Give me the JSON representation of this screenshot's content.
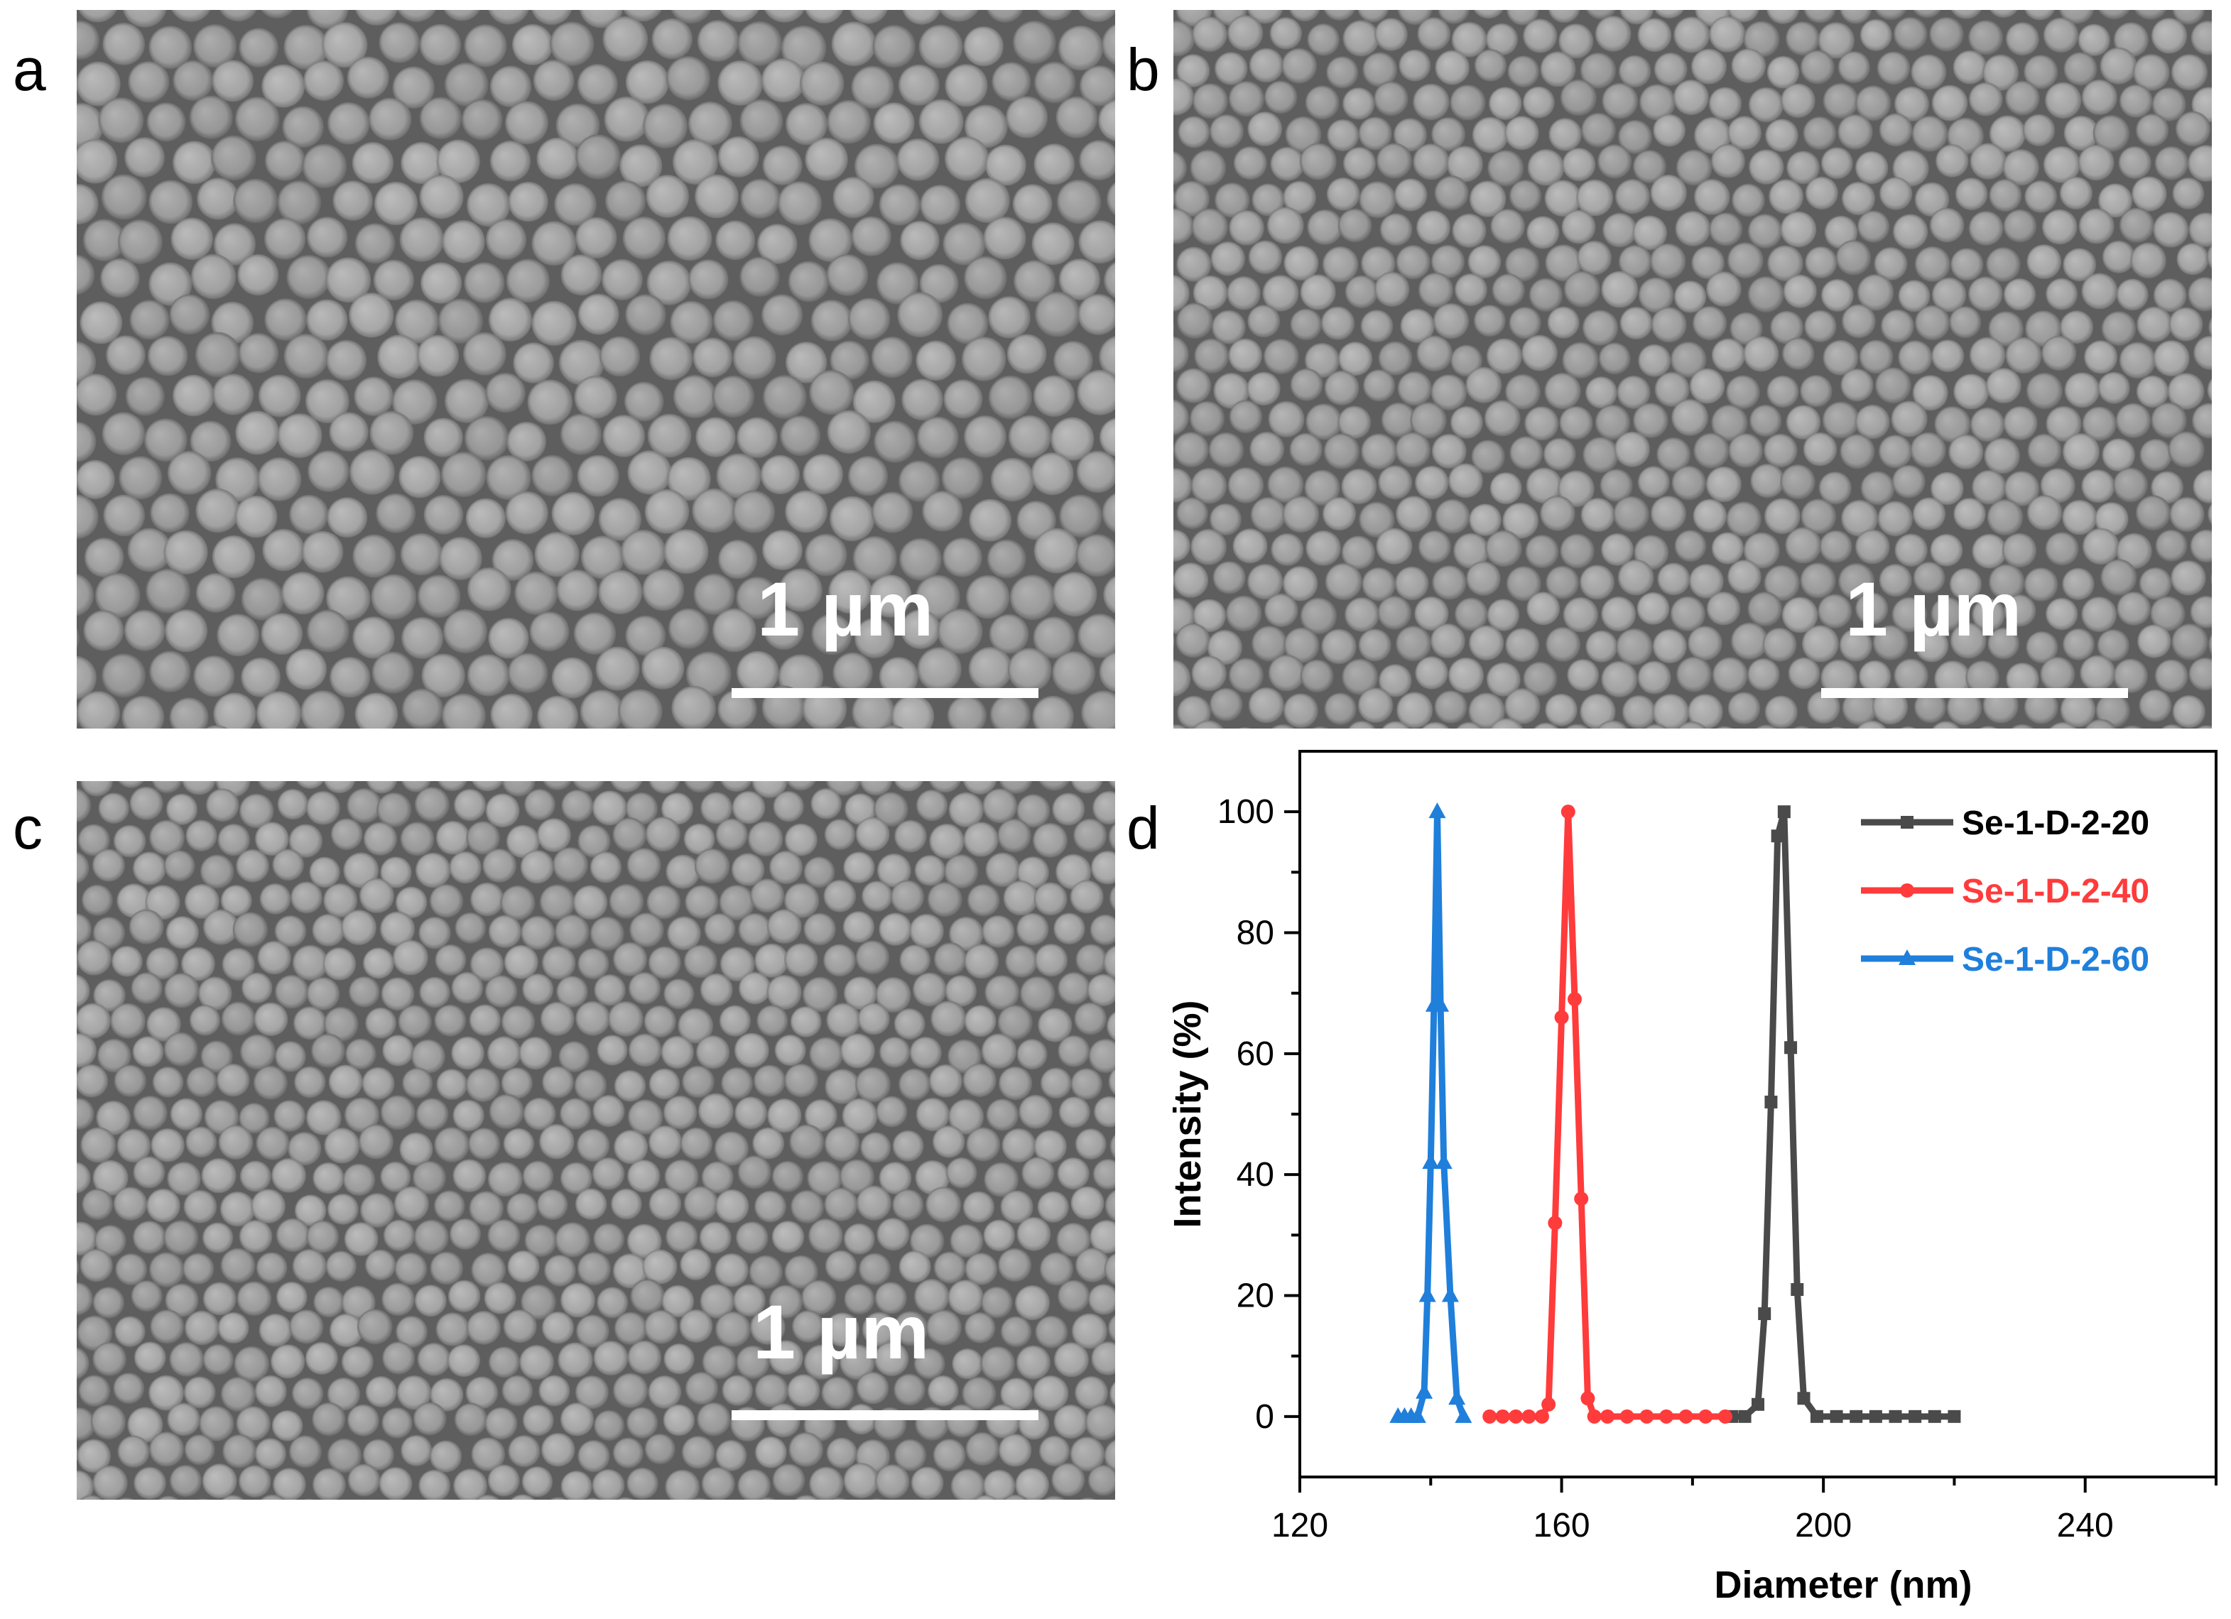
{
  "panels": [
    {
      "letter": "a",
      "scale_label": "1 µm"
    },
    {
      "letter": "b",
      "scale_label": "1 µm"
    },
    {
      "letter": "c",
      "scale_label": "1 µm"
    },
    {
      "letter": "d"
    }
  ],
  "chart_data": {
    "type": "line",
    "xlabel": "Diameter (nm)",
    "ylabel": "Intensity (%)",
    "xlim": [
      120,
      260
    ],
    "ylim": [
      -10,
      110
    ],
    "xticks": [
      120,
      160,
      200,
      240
    ],
    "yticks": [
      0,
      20,
      40,
      60,
      80,
      100
    ],
    "legend_position": "top-right",
    "grid": false,
    "series": [
      {
        "name": "Se-1-D-2-20",
        "color": "#4a4a4a",
        "marker": "square",
        "x": [
          186,
          188,
          190,
          191,
          192,
          193,
          194,
          195,
          196,
          197,
          199,
          202,
          205,
          208,
          211,
          214,
          217,
          220
        ],
        "y": [
          0,
          0,
          2,
          17,
          52,
          96,
          100,
          61,
          21,
          3,
          0,
          0,
          0,
          0,
          0,
          0,
          0,
          0
        ]
      },
      {
        "name": "Se-1-D-2-40",
        "color": "#ff3b3b",
        "marker": "circle",
        "x": [
          149,
          151,
          153,
          155,
          157,
          158,
          159,
          160,
          161,
          162,
          163,
          164,
          165,
          167,
          170,
          173,
          176,
          179,
          182,
          185
        ],
        "y": [
          0,
          0,
          0,
          0,
          0,
          2,
          32,
          66,
          100,
          69,
          36,
          3,
          0,
          0,
          0,
          0,
          0,
          0,
          0,
          0
        ]
      },
      {
        "name": "Se-1-D-2-60",
        "color": "#1f7fdb",
        "marker": "triangle",
        "x": [
          135,
          136,
          137,
          138,
          139,
          139.5,
          140,
          140.5,
          141,
          141.5,
          142,
          143,
          144,
          145
        ],
        "y": [
          0,
          0,
          0,
          0,
          4,
          20,
          42,
          68,
          100,
          68,
          42,
          20,
          3,
          0
        ]
      }
    ]
  }
}
